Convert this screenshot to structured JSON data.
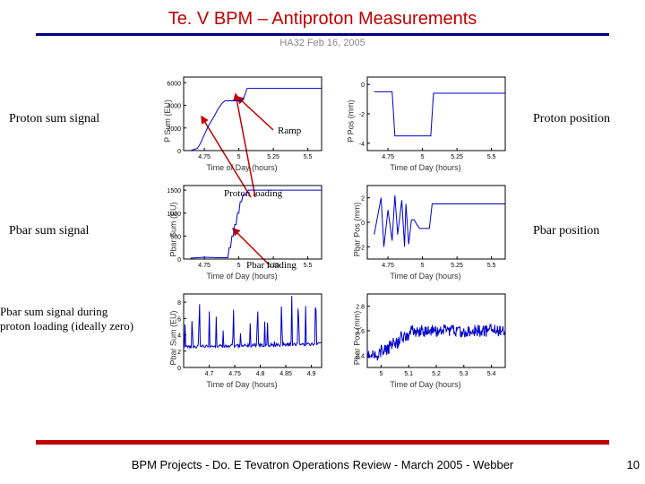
{
  "title": "Te. V BPM – Antiproton Measurements",
  "subtitle": "HA32 Feb 16, 2005",
  "footer": "BPM Projects - Do. E Tevatron Operations Review - March 2005 - Webber",
  "pagenum": "10",
  "colors": {
    "title": "#c00000",
    "rule": "#000080",
    "footer_rule": "#c00000",
    "trace": "#0000cc",
    "axis": "#000000",
    "grid": "#e0e0e0",
    "arrow": "#c00000"
  },
  "sidelabels": {
    "proton_sum": "Proton sum signal",
    "proton_pos": "Proton position",
    "pbar_sum": "Pbar sum signal",
    "pbar_pos": "Pbar position",
    "pbar_zero": "Pbar sum signal during proton loading (ideally zero)"
  },
  "annotations": {
    "ramp": "Ramp",
    "proton_loading": "Proton loading",
    "pbar_loading": "Pbar loading"
  },
  "charts": {
    "c11": {
      "ylabel": "P Sum (EU)",
      "xlabel": "Time of Day (hours)",
      "xticks": [
        "4.75",
        "5",
        "5.25",
        "5.5"
      ],
      "yticks": [
        "0",
        "2000",
        "4000",
        "6000"
      ],
      "ylim": [
        0,
        6500
      ],
      "xlim": [
        4.6,
        5.6
      ],
      "series": [
        [
          4.65,
          0
        ],
        [
          4.7,
          200
        ],
        [
          4.72,
          600
        ],
        [
          4.75,
          1400
        ],
        [
          4.78,
          2200
        ],
        [
          4.82,
          3000
        ],
        [
          4.85,
          3700
        ],
        [
          4.88,
          4200
        ],
        [
          4.9,
          4400
        ],
        [
          4.95,
          4400
        ],
        [
          5.02,
          4400
        ],
        [
          5.04,
          4800
        ],
        [
          5.06,
          5500
        ],
        [
          5.1,
          5500
        ],
        [
          5.2,
          5500
        ],
        [
          5.3,
          5500
        ],
        [
          5.4,
          5500
        ],
        [
          5.5,
          5500
        ],
        [
          5.6,
          5500
        ]
      ]
    },
    "c12": {
      "ylabel": "P Pos (mm)",
      "xlabel": "Time of Day (hours)",
      "xticks": [
        "4.75",
        "5",
        "5.25",
        "5.5"
      ],
      "yticks": [
        "-4",
        "-2",
        "0"
      ],
      "ylim": [
        -4.5,
        0.5
      ],
      "xlim": [
        4.6,
        5.6
      ],
      "series": [
        [
          4.65,
          -0.5
        ],
        [
          4.7,
          -0.5
        ],
        [
          4.75,
          -0.5
        ],
        [
          4.78,
          -0.5
        ],
        [
          4.8,
          -3.5
        ],
        [
          4.85,
          -3.5
        ],
        [
          4.9,
          -3.5
        ],
        [
          4.95,
          -3.5
        ],
        [
          5.0,
          -3.5
        ],
        [
          5.02,
          -3.5
        ],
        [
          5.04,
          -3.5
        ],
        [
          5.06,
          -3.5
        ],
        [
          5.08,
          -0.6
        ],
        [
          5.1,
          -0.6
        ],
        [
          5.2,
          -0.6
        ],
        [
          5.3,
          -0.6
        ],
        [
          5.4,
          -0.6
        ],
        [
          5.5,
          -0.6
        ],
        [
          5.6,
          -0.6
        ]
      ]
    },
    "c21": {
      "ylabel": "Pbar Sum (EU)",
      "xlabel": "Time of Day (hours)",
      "xticks": [
        "4.75",
        "5",
        "5.25",
        "5.5"
      ],
      "yticks": [
        "0",
        "500",
        "1000",
        "1500"
      ],
      "ylim": [
        0,
        1600
      ],
      "xlim": [
        4.6,
        5.6
      ],
      "series": [
        [
          4.65,
          20
        ],
        [
          4.7,
          30
        ],
        [
          4.75,
          40
        ],
        [
          4.8,
          35
        ],
        [
          4.85,
          30
        ],
        [
          4.9,
          30
        ],
        [
          4.92,
          30
        ],
        [
          4.93,
          250
        ],
        [
          4.94,
          250
        ],
        [
          4.95,
          500
        ],
        [
          4.96,
          500
        ],
        [
          4.97,
          750
        ],
        [
          4.98,
          750
        ],
        [
          4.99,
          1000
        ],
        [
          5.0,
          1000
        ],
        [
          5.01,
          1250
        ],
        [
          5.02,
          1250
        ],
        [
          5.03,
          1400
        ],
        [
          5.05,
          1400
        ],
        [
          5.07,
          1500
        ],
        [
          5.1,
          1500
        ],
        [
          5.2,
          1500
        ],
        [
          5.3,
          1500
        ],
        [
          5.4,
          1500
        ],
        [
          5.5,
          1500
        ],
        [
          5.6,
          1500
        ]
      ]
    },
    "c22": {
      "ylabel": "Pbar Pos (mm)",
      "xlabel": "Time of Day (hours)",
      "xticks": [
        "4.75",
        "5",
        "5.25",
        "5.5"
      ],
      "yticks": [
        "-2",
        "0",
        "2"
      ],
      "ylim": [
        -3,
        3
      ],
      "xlim": [
        4.6,
        5.6
      ],
      "series": [
        [
          4.65,
          -1
        ],
        [
          4.7,
          2
        ],
        [
          4.72,
          -2
        ],
        [
          4.75,
          1
        ],
        [
          4.78,
          -1.5
        ],
        [
          4.8,
          2.2
        ],
        [
          4.82,
          -1
        ],
        [
          4.85,
          1.8
        ],
        [
          4.87,
          -2
        ],
        [
          4.88,
          1.5
        ],
        [
          4.9,
          -1.8
        ],
        [
          4.92,
          0.2
        ],
        [
          4.94,
          0.2
        ],
        [
          4.96,
          -0.2
        ],
        [
          4.98,
          -0.5
        ],
        [
          5.0,
          -0.5
        ],
        [
          5.02,
          -0.5
        ],
        [
          5.05,
          -0.5
        ],
        [
          5.07,
          1.5
        ],
        [
          5.1,
          1.5
        ],
        [
          5.2,
          1.5
        ],
        [
          5.3,
          1.5
        ],
        [
          5.4,
          1.5
        ],
        [
          5.5,
          1.5
        ],
        [
          5.6,
          1.5
        ]
      ]
    },
    "c31": {
      "ylabel": "Pbar Sum (EU)",
      "xlabel": "Time of Day (hours)",
      "xticks": [
        "4.7",
        "4.75",
        "4.8",
        "4.85",
        "4.9"
      ],
      "yticks": [
        "0",
        "2",
        "4",
        "6",
        "8"
      ],
      "ylim": [
        0,
        9
      ],
      "xlim": [
        4.65,
        4.92
      ],
      "noisy": true,
      "baseline": 2.5,
      "spikes": 28,
      "spike_amp": 6
    },
    "c32": {
      "ylabel": "Pbar Pos (mm)",
      "xlabel": "Time of Day (hours)",
      "xticks": [
        "5",
        "5.1",
        "5.2",
        "5.3",
        "5.4"
      ],
      "yticks": [
        "2.4",
        "2.6",
        "2.8"
      ],
      "ylim": [
        2.3,
        2.9
      ],
      "xlim": [
        4.95,
        5.45
      ],
      "noisy": true,
      "steps": [
        [
          4.95,
          2.4
        ],
        [
          5.0,
          2.45
        ],
        [
          5.03,
          2.5
        ],
        [
          5.07,
          2.55
        ],
        [
          5.1,
          2.6
        ],
        [
          5.15,
          2.6
        ],
        [
          5.2,
          2.6
        ],
        [
          5.3,
          2.6
        ],
        [
          5.4,
          2.6
        ],
        [
          5.45,
          2.6
        ]
      ],
      "noise_amp": 0.05
    }
  }
}
